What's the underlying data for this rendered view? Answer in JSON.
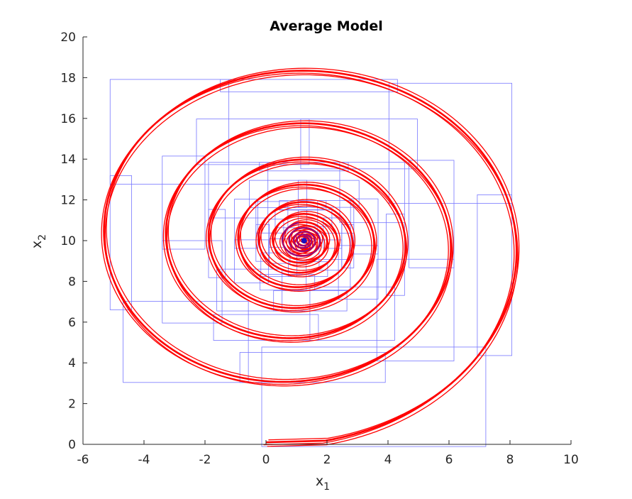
{
  "chart_data": {
    "type": "line",
    "title": "Average Model",
    "xlabel": {
      "base": "x",
      "sub": "1"
    },
    "ylabel": {
      "base": "x",
      "sub": "2"
    },
    "xlim": [
      -6,
      10
    ],
    "ylim": [
      0,
      20
    ],
    "xticks": [
      "-6",
      "-4",
      "-2",
      "0",
      "2",
      "4",
      "6",
      "8",
      "10"
    ],
    "yticks": [
      "0",
      "2",
      "4",
      "6",
      "8",
      "10",
      "12",
      "14",
      "16",
      "18",
      "20"
    ],
    "grid": false,
    "spiral": {
      "center": [
        1.25,
        10.0
      ],
      "start": [
        0.0,
        0.1
      ],
      "description_note": "outward-start inward spiral; radius halves roughly per 1.25 turns",
      "samples": [
        {
          "x": 0.0,
          "y": 0.1
        },
        {
          "x": 2.5,
          "y": 0.6
        },
        {
          "x": 4.5,
          "y": 1.6
        },
        {
          "x": 6.5,
          "y": 3.1
        },
        {
          "x": 8.1,
          "y": 5.1
        },
        {
          "x": 9.1,
          "y": 7.5
        },
        {
          "x": 9.3,
          "y": 10.0
        },
        {
          "x": 8.7,
          "y": 13.0
        },
        {
          "x": 7.0,
          "y": 15.6
        },
        {
          "x": 4.5,
          "y": 17.4
        },
        {
          "x": 2.0,
          "y": 17.9
        },
        {
          "x": -1.0,
          "y": 17.2
        },
        {
          "x": -3.5,
          "y": 15.3
        },
        {
          "x": -5.0,
          "y": 12.5
        },
        {
          "x": -5.3,
          "y": 10.0
        },
        {
          "x": -4.8,
          "y": 7.0
        },
        {
          "x": -3.0,
          "y": 4.9
        },
        {
          "x": -0.5,
          "y": 3.8
        },
        {
          "x": 1.0,
          "y": 3.7
        },
        {
          "x": 3.5,
          "y": 4.3
        },
        {
          "x": 5.5,
          "y": 6.3
        },
        {
          "x": 6.4,
          "y": 9.0
        },
        {
          "x": 6.0,
          "y": 12.5
        },
        {
          "x": 4.5,
          "y": 14.3
        },
        {
          "x": 1.5,
          "y": 15.1
        },
        {
          "x": -1.0,
          "y": 14.6
        },
        {
          "x": -2.5,
          "y": 12.8
        },
        {
          "x": -2.8,
          "y": 10.0
        },
        {
          "x": -2.0,
          "y": 7.5
        },
        {
          "x": 0.5,
          "y": 5.9
        },
        {
          "x": 2.5,
          "y": 6.1
        },
        {
          "x": 4.2,
          "y": 7.8
        },
        {
          "x": 4.6,
          "y": 10.0
        },
        {
          "x": 3.8,
          "y": 12.3
        },
        {
          "x": 1.5,
          "y": 13.3
        },
        {
          "x": -0.5,
          "y": 12.5
        },
        {
          "x": -1.3,
          "y": 10.0
        },
        {
          "x": -0.3,
          "y": 8.0
        },
        {
          "x": 1.2,
          "y": 7.3
        }
      ]
    },
    "series": [
      {
        "color": "#ff0000",
        "count": 4
      },
      {
        "color": "#0000ff",
        "style": "boxes"
      }
    ]
  }
}
